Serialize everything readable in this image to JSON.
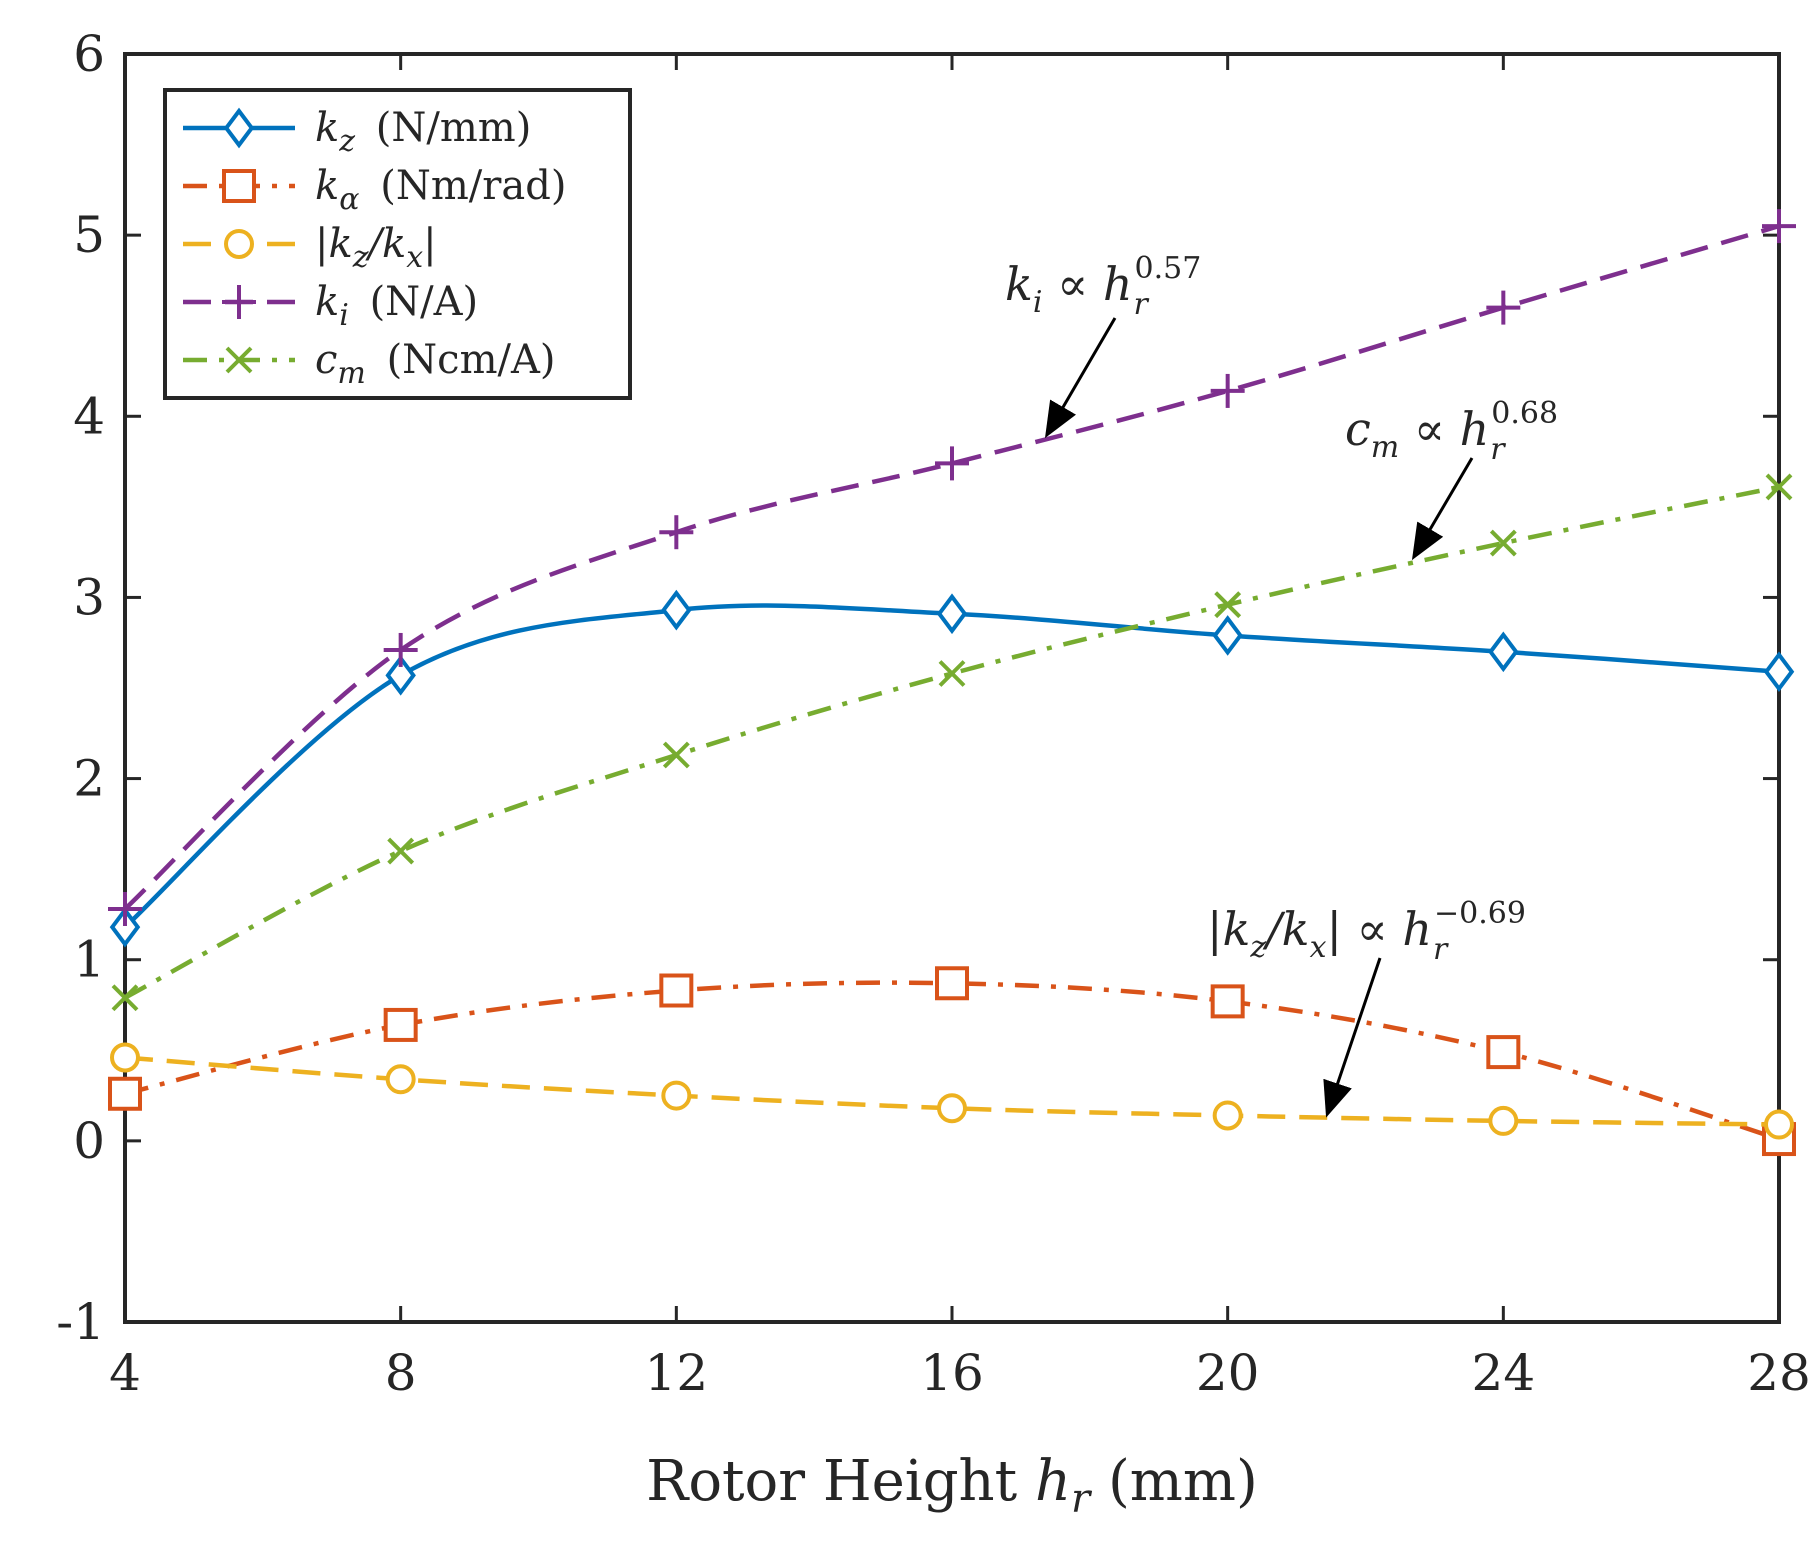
{
  "chart_data": {
    "type": "line",
    "title": "",
    "xlabel": "Rotor Height h_r (mm)",
    "xlabel_parts": {
      "text": "Rotor Height",
      "var": "h",
      "var_sub": "r",
      "unit": "(mm)"
    },
    "ylabel": "",
    "x": [
      4,
      8,
      12,
      16,
      20,
      24,
      28
    ],
    "xlim": [
      4,
      28
    ],
    "ylim": [
      -1,
      6
    ],
    "xticks": [
      "4",
      "8",
      "12",
      "16",
      "20",
      "24",
      "28"
    ],
    "yticks": [
      "-1",
      "0",
      "1",
      "2",
      "3",
      "4",
      "5",
      "6"
    ],
    "grid": false,
    "legend_position": "top-left",
    "series": [
      {
        "id": "kz",
        "name": "k_z (N/mm)",
        "var": "k",
        "sub": "z",
        "unit": "(N/mm)",
        "color": "#0072BD",
        "dash": "solid",
        "marker": "diamond",
        "values": [
          1.18,
          2.57,
          2.93,
          2.91,
          2.79,
          2.7,
          2.59
        ]
      },
      {
        "id": "ka",
        "name": "k_α (Nm/rad)",
        "var": "k",
        "sub": "α",
        "unit": "(Nm/rad)",
        "color": "#D95319",
        "dash": "dashdot",
        "marker": "square",
        "values": [
          0.26,
          0.64,
          0.83,
          0.87,
          0.77,
          0.49,
          0.01
        ]
      },
      {
        "id": "kzkx",
        "name": "|k_z/k_x|",
        "var": "|k",
        "sub": "z",
        "mid": "/k",
        "sub2": "x",
        "end": "|",
        "unit": "",
        "color": "#EDB120",
        "dash": "dashed",
        "marker": "circle",
        "values": [
          0.46,
          0.34,
          0.25,
          0.18,
          0.14,
          0.11,
          0.09
        ]
      },
      {
        "id": "ki",
        "name": "k_i (N/A)",
        "var": "k",
        "sub": "i",
        "unit": "(N/A)",
        "color": "#7E2F8E",
        "dash": "dashed",
        "marker": "plus",
        "values": [
          1.28,
          2.71,
          3.36,
          3.74,
          4.14,
          4.6,
          5.05
        ]
      },
      {
        "id": "cm",
        "name": "c_m (Ncm/A)",
        "var": "c",
        "sub": "m",
        "unit": "(Ncm/A)",
        "color": "#77AC30",
        "dash": "dashdot",
        "marker": "x",
        "values": [
          0.79,
          1.6,
          2.13,
          2.58,
          2.96,
          3.3,
          3.61
        ]
      }
    ],
    "annotations": [
      {
        "id": "ann-ki",
        "lhs": "k",
        "lhs_sub": "i",
        "rel": "∝",
        "rhs": "h",
        "rhs_sub": "r",
        "exponent": "0.57",
        "points_to": {
          "x": 17.5,
          "y": 3.9
        }
      },
      {
        "id": "ann-cm",
        "lhs": "c",
        "lhs_sub": "m",
        "rel": "∝",
        "rhs": "h",
        "rhs_sub": "r",
        "exponent": "0.68",
        "points_to": {
          "x": 22.7,
          "y": 3.2
        }
      },
      {
        "id": "ann-kzkx",
        "lhs": "|k",
        "lhs_sub": "z",
        "lhs_mid": "/k",
        "lhs_sub2": "x",
        "lhs_end": "|",
        "rel": "∝",
        "rhs": "h",
        "rhs_sub": "r",
        "exponent": "−0.69",
        "points_to": {
          "x": 21.6,
          "y": 0.13
        }
      }
    ]
  }
}
